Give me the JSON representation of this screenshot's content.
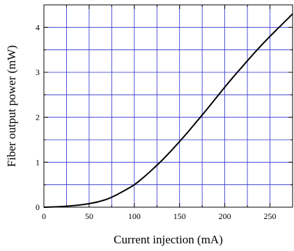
{
  "chart_data": {
    "type": "line",
    "xlabel": "Current injection (mA)",
    "ylabel": "Fiber output power (mW)",
    "xlim": [
      0,
      275
    ],
    "ylim": [
      0,
      4.5
    ],
    "x_ticks": [
      0,
      50,
      100,
      150,
      200,
      250
    ],
    "y_ticks": [
      0,
      1,
      2,
      3,
      4
    ],
    "x_gridlines_step": 25,
    "y_gridlines_step": 0.5,
    "grid": true,
    "grid_color": "#2a2ad0",
    "line_color": "#000000",
    "series": [
      {
        "x": [
          0,
          10,
          20,
          30,
          40,
          50,
          60,
          70,
          80,
          90,
          100,
          110,
          120,
          130,
          140,
          150,
          160,
          170,
          180,
          190,
          200,
          210,
          220,
          230,
          240,
          250,
          260,
          270,
          275
        ],
        "y": [
          0.0,
          0.005,
          0.015,
          0.03,
          0.05,
          0.08,
          0.12,
          0.18,
          0.27,
          0.38,
          0.5,
          0.66,
          0.84,
          1.03,
          1.24,
          1.46,
          1.69,
          1.93,
          2.17,
          2.42,
          2.67,
          2.91,
          3.14,
          3.37,
          3.59,
          3.8,
          4.0,
          4.2,
          4.3
        ]
      }
    ]
  }
}
